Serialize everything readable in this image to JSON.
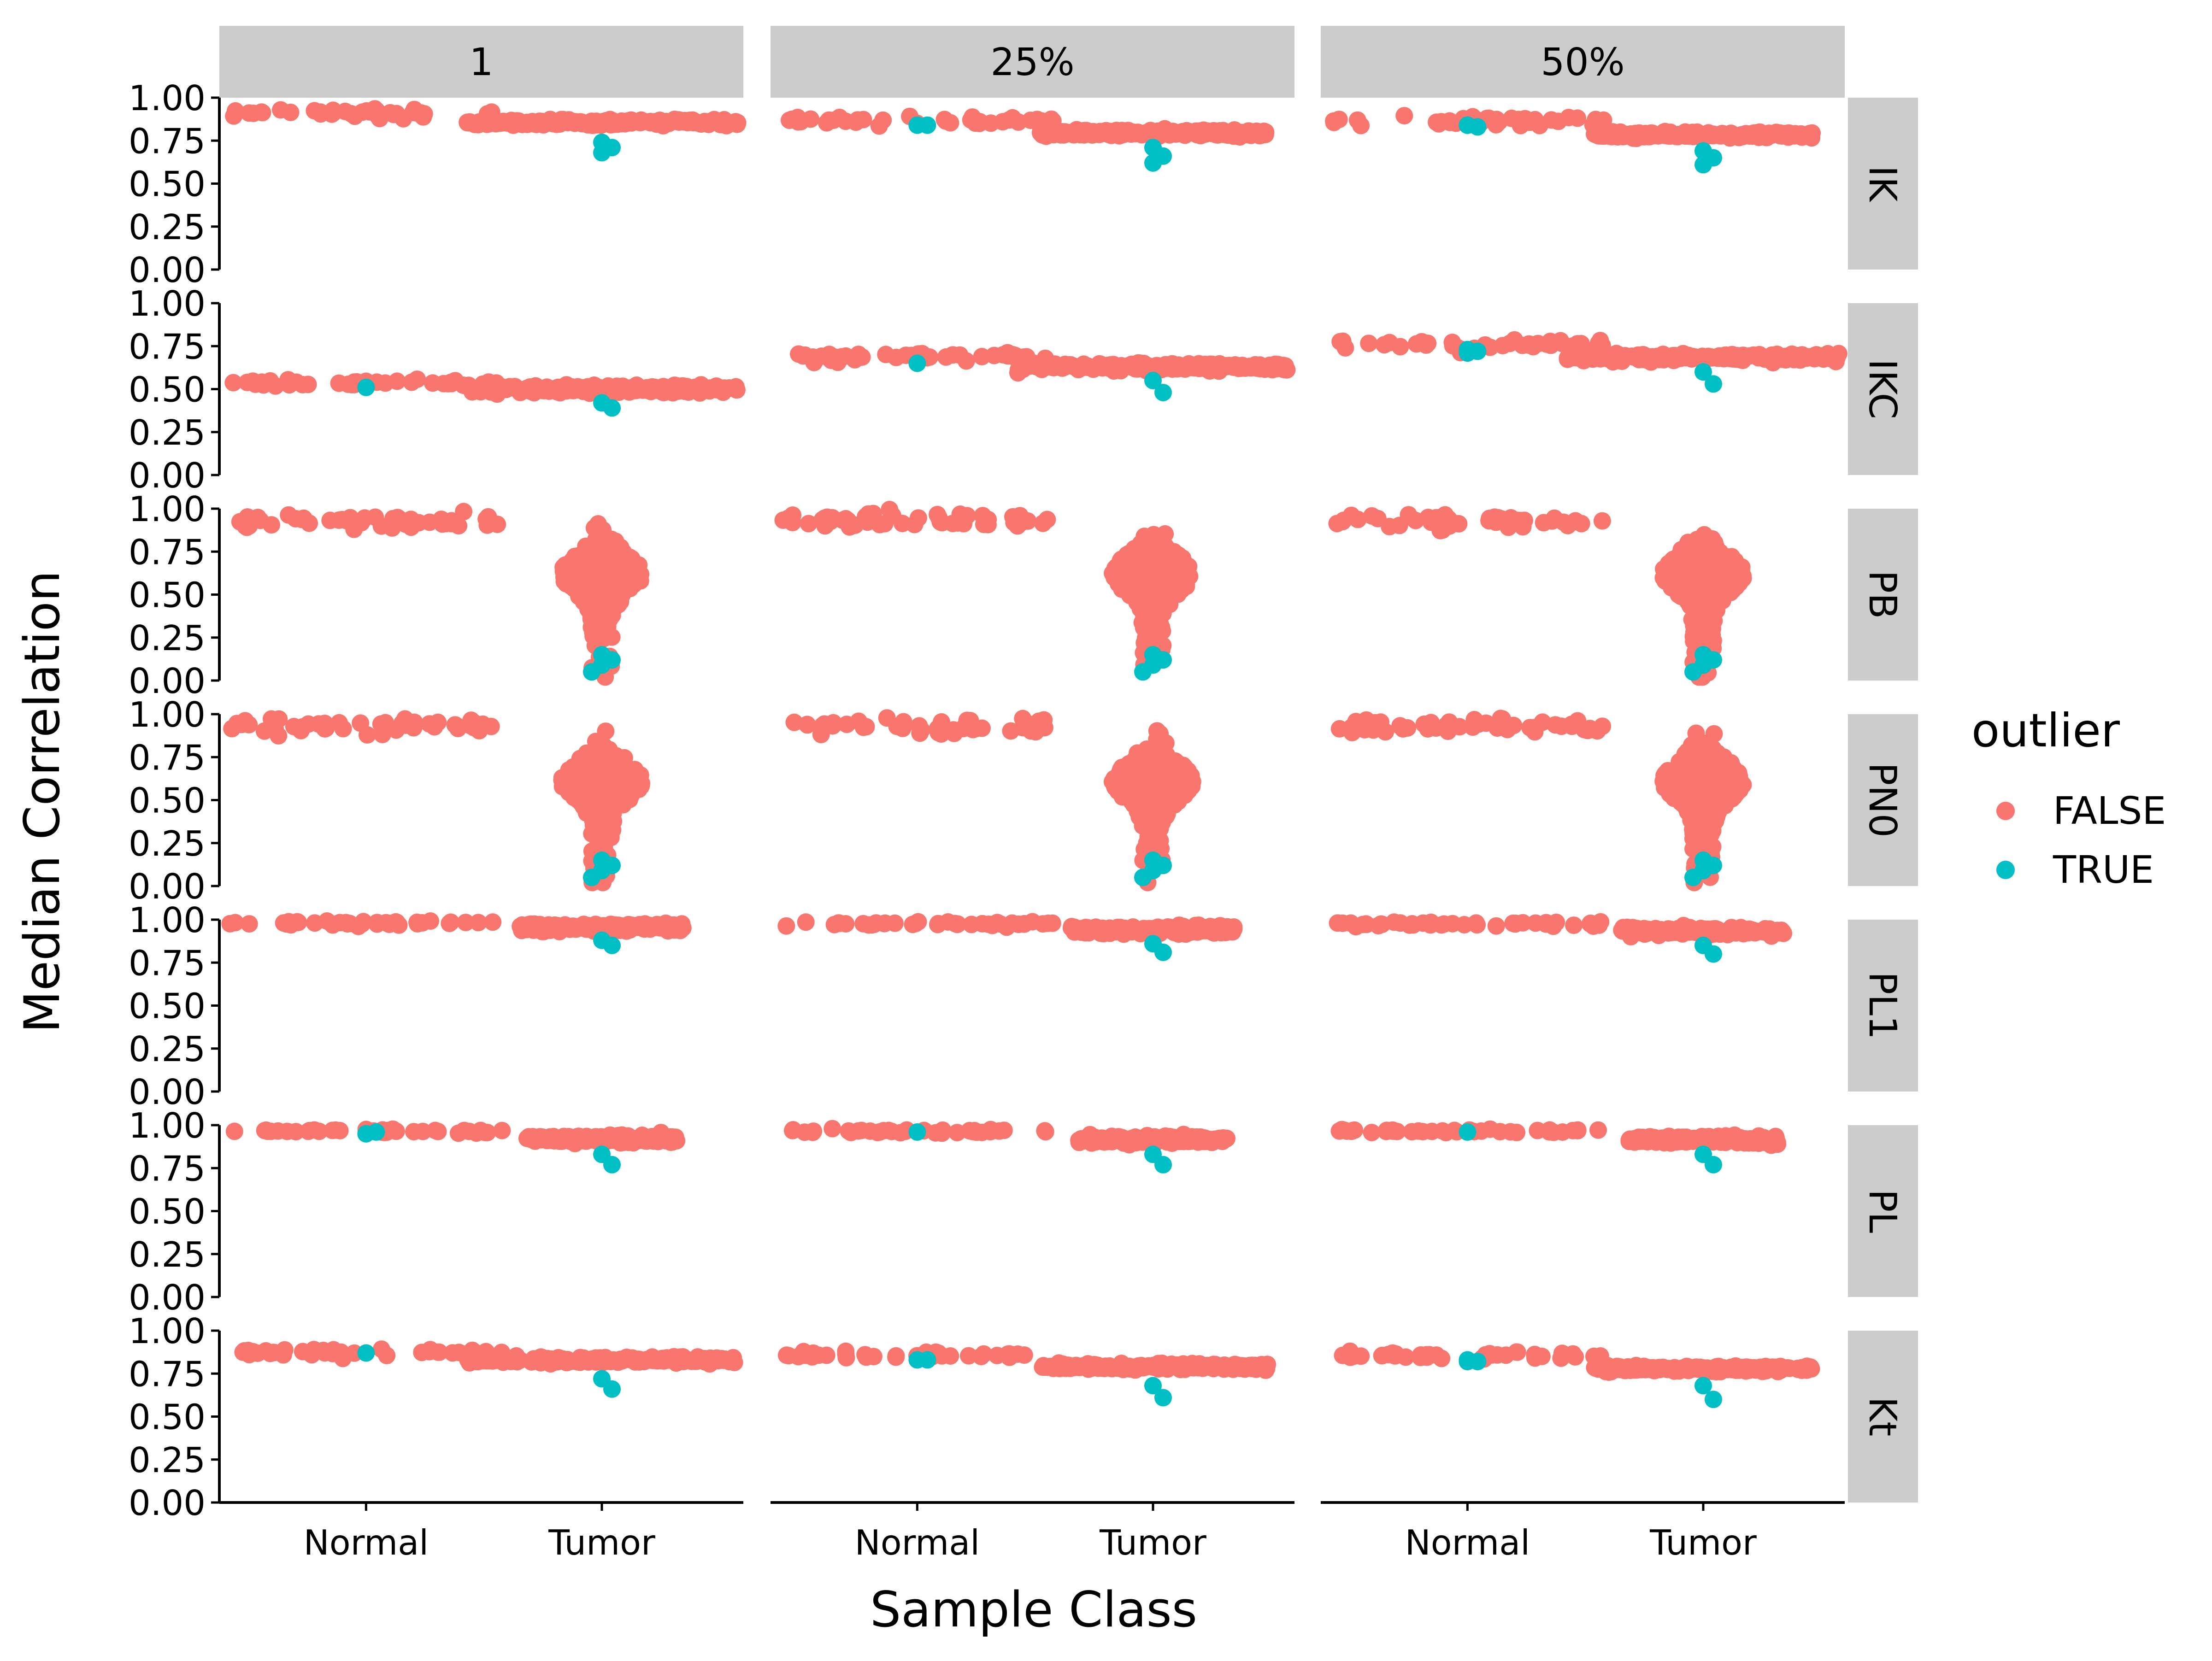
{
  "chart_data": {
    "type": "scatter",
    "subtype": "faceted beeswarm",
    "xlabel": "Sample Class",
    "ylabel": "Median Correlation",
    "categories": [
      "Normal",
      "Tumor"
    ],
    "ylim": [
      0,
      1
    ],
    "yticks": [
      "0.00",
      "0.25",
      "0.50",
      "0.75",
      "1.00"
    ],
    "grid": false,
    "column_facets": [
      "1",
      "25%",
      "50%"
    ],
    "row_facets": [
      "IK",
      "IKC",
      "PB",
      "PN0",
      "PL1",
      "PL",
      "Kt"
    ],
    "legend": {
      "title": "outlier",
      "position": "right",
      "entries": [
        {
          "label": "FALSE",
          "color": "#F8766D"
        },
        {
          "label": "TRUE",
          "color": "#00BFC4"
        }
      ]
    },
    "strip_color": "#CCCCCC",
    "panels": [
      {
        "row": "IK",
        "col": "1",
        "Normal": {
          "median": 0.91,
          "spread": 0.012,
          "width": 1.0,
          "n": 40,
          "outliers": []
        },
        "Tumor": {
          "median": 0.855,
          "spread": 0.008,
          "width": 1.0,
          "n": 220,
          "outliers": [
            0.74,
            0.71,
            0.68
          ]
        }
      },
      {
        "row": "IK",
        "col": "25%",
        "Normal": {
          "median": 0.865,
          "spread": 0.012,
          "width": 1.0,
          "n": 40,
          "outliers": [
            0.84,
            0.84
          ]
        },
        "Tumor": {
          "median": 0.795,
          "spread": 0.008,
          "width": 0.85,
          "n": 220,
          "outliers": [
            0.71,
            0.66,
            0.62
          ]
        }
      },
      {
        "row": "IK",
        "col": "50%",
        "Normal": {
          "median": 0.86,
          "spread": 0.012,
          "width": 1.0,
          "n": 40,
          "outliers": [
            0.84,
            0.83,
            0.84
          ]
        },
        "Tumor": {
          "median": 0.785,
          "spread": 0.008,
          "width": 0.8,
          "n": 220,
          "outliers": [
            0.69,
            0.65,
            0.61
          ]
        }
      },
      {
        "row": "IKC",
        "col": "1",
        "Normal": {
          "median": 0.535,
          "spread": 0.012,
          "width": 1.0,
          "n": 40,
          "outliers": [
            0.51
          ]
        },
        "Tumor": {
          "median": 0.5,
          "spread": 0.01,
          "width": 1.0,
          "n": 220,
          "outliers": [
            0.42,
            0.39
          ]
        }
      },
      {
        "row": "IKC",
        "col": "25%",
        "Normal": {
          "median": 0.69,
          "spread": 0.014,
          "width": 1.0,
          "n": 40,
          "outliers": [
            0.65
          ]
        },
        "Tumor": {
          "median": 0.63,
          "spread": 0.01,
          "width": 1.0,
          "n": 220,
          "outliers": [
            0.55,
            0.48
          ]
        }
      },
      {
        "row": "IKC",
        "col": "50%",
        "Normal": {
          "median": 0.76,
          "spread": 0.014,
          "width": 1.0,
          "n": 40,
          "outliers": [
            0.73,
            0.72,
            0.71
          ]
        },
        "Tumor": {
          "median": 0.685,
          "spread": 0.01,
          "width": 1.0,
          "n": 220,
          "outliers": [
            0.6,
            0.53
          ]
        }
      },
      {
        "row": "PB",
        "col": "1",
        "Normal": {
          "median": 0.93,
          "spread": 0.02,
          "width": 1.0,
          "n": 50,
          "outliers": []
        },
        "Tumor": {
          "median": 0.62,
          "spread": 0.09,
          "width": 0.3,
          "n": 420,
          "outliers": [
            0.15,
            0.12,
            0.09,
            0.05
          ]
        }
      },
      {
        "row": "PB",
        "col": "25%",
        "Normal": {
          "median": 0.93,
          "spread": 0.02,
          "width": 1.0,
          "n": 50,
          "outliers": []
        },
        "Tumor": {
          "median": 0.62,
          "spread": 0.09,
          "width": 0.3,
          "n": 420,
          "outliers": [
            0.15,
            0.12,
            0.09,
            0.05
          ]
        }
      },
      {
        "row": "PB",
        "col": "50%",
        "Normal": {
          "median": 0.93,
          "spread": 0.02,
          "width": 1.0,
          "n": 50,
          "outliers": []
        },
        "Tumor": {
          "median": 0.62,
          "spread": 0.09,
          "width": 0.3,
          "n": 420,
          "outliers": [
            0.15,
            0.12,
            0.09,
            0.05
          ]
        }
      },
      {
        "row": "PN0",
        "col": "1",
        "Normal": {
          "median": 0.93,
          "spread": 0.022,
          "width": 1.0,
          "n": 50,
          "outliers": []
        },
        "Tumor": {
          "median": 0.61,
          "spread": 0.09,
          "width": 0.3,
          "n": 420,
          "outliers": [
            0.15,
            0.12,
            0.09,
            0.05
          ]
        }
      },
      {
        "row": "PN0",
        "col": "25%",
        "Normal": {
          "median": 0.93,
          "spread": 0.022,
          "width": 1.0,
          "n": 50,
          "outliers": []
        },
        "Tumor": {
          "median": 0.61,
          "spread": 0.09,
          "width": 0.3,
          "n": 420,
          "outliers": [
            0.15,
            0.12,
            0.09,
            0.05
          ]
        }
      },
      {
        "row": "PN0",
        "col": "50%",
        "Normal": {
          "median": 0.93,
          "spread": 0.022,
          "width": 1.0,
          "n": 50,
          "outliers": []
        },
        "Tumor": {
          "median": 0.61,
          "spread": 0.09,
          "width": 0.3,
          "n": 420,
          "outliers": [
            0.15,
            0.12,
            0.09,
            0.05
          ]
        }
      },
      {
        "row": "PL1",
        "col": "1",
        "Normal": {
          "median": 0.98,
          "spread": 0.006,
          "width": 1.0,
          "n": 40,
          "outliers": []
        },
        "Tumor": {
          "median": 0.955,
          "spread": 0.01,
          "width": 0.6,
          "n": 200,
          "outliers": [
            0.88,
            0.85
          ]
        }
      },
      {
        "row": "PL1",
        "col": "25%",
        "Normal": {
          "median": 0.975,
          "spread": 0.006,
          "width": 1.0,
          "n": 40,
          "outliers": []
        },
        "Tumor": {
          "median": 0.94,
          "spread": 0.01,
          "width": 0.6,
          "n": 200,
          "outliers": [
            0.86,
            0.81
          ]
        }
      },
      {
        "row": "PL1",
        "col": "50%",
        "Normal": {
          "median": 0.975,
          "spread": 0.006,
          "width": 1.0,
          "n": 40,
          "outliers": []
        },
        "Tumor": {
          "median": 0.935,
          "spread": 0.01,
          "width": 0.6,
          "n": 200,
          "outliers": [
            0.85,
            0.8
          ]
        }
      },
      {
        "row": "PL",
        "col": "1",
        "Normal": {
          "median": 0.965,
          "spread": 0.006,
          "width": 1.0,
          "n": 40,
          "outliers": [
            0.95,
            0.96,
            0.95
          ]
        },
        "Tumor": {
          "median": 0.92,
          "spread": 0.01,
          "width": 0.55,
          "n": 200,
          "outliers": [
            0.83,
            0.77
          ]
        }
      },
      {
        "row": "PL",
        "col": "25%",
        "Normal": {
          "median": 0.965,
          "spread": 0.006,
          "width": 1.0,
          "n": 40,
          "outliers": [
            0.96
          ]
        },
        "Tumor": {
          "median": 0.915,
          "spread": 0.01,
          "width": 0.55,
          "n": 200,
          "outliers": [
            0.83,
            0.77
          ]
        }
      },
      {
        "row": "PL",
        "col": "50%",
        "Normal": {
          "median": 0.965,
          "spread": 0.006,
          "width": 1.0,
          "n": 40,
          "outliers": [
            0.96
          ]
        },
        "Tumor": {
          "median": 0.915,
          "spread": 0.01,
          "width": 0.55,
          "n": 200,
          "outliers": [
            0.83,
            0.77
          ]
        }
      },
      {
        "row": "Kt",
        "col": "1",
        "Normal": {
          "median": 0.875,
          "spread": 0.01,
          "width": 1.0,
          "n": 40,
          "outliers": [
            0.87
          ]
        },
        "Tumor": {
          "median": 0.83,
          "spread": 0.008,
          "width": 1.0,
          "n": 220,
          "outliers": [
            0.72,
            0.66
          ]
        }
      },
      {
        "row": "Kt",
        "col": "25%",
        "Normal": {
          "median": 0.855,
          "spread": 0.01,
          "width": 1.0,
          "n": 40,
          "outliers": [
            0.83,
            0.83
          ]
        },
        "Tumor": {
          "median": 0.79,
          "spread": 0.008,
          "width": 0.85,
          "n": 220,
          "outliers": [
            0.68,
            0.61
          ]
        }
      },
      {
        "row": "Kt",
        "col": "50%",
        "Normal": {
          "median": 0.855,
          "spread": 0.01,
          "width": 1.0,
          "n": 40,
          "outliers": [
            0.83,
            0.82,
            0.82
          ]
        },
        "Tumor": {
          "median": 0.78,
          "spread": 0.008,
          "width": 0.8,
          "n": 220,
          "outliers": [
            0.68,
            0.6
          ]
        }
      }
    ]
  }
}
